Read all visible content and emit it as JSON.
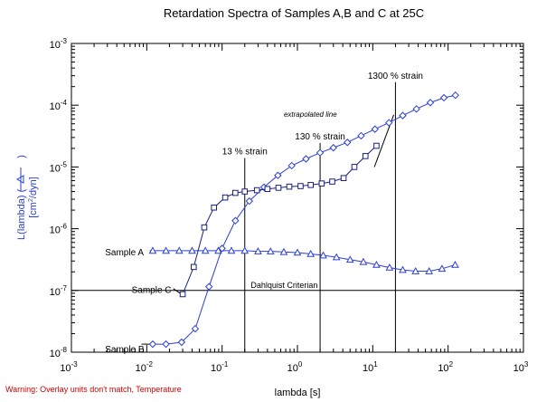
{
  "chart_data": {
    "type": "line",
    "title": "Retardation Spectra of Samples A,B and C at 25C",
    "xlabel": "lambda [s]",
    "ylabel": "L(lambda) (",
    "ylabel_suffix": ")",
    "ylabel_unit": "[cm",
    "ylabel_unit_sup": "2",
    "ylabel_unit_tail": "/dyn]",
    "x_scale": "log",
    "y_scale": "log",
    "xlim": [
      0.001,
      1000
    ],
    "ylim": [
      1e-08,
      0.001
    ],
    "x_ticks": [
      {
        "value": 0.001,
        "base": "10",
        "exp": "-3"
      },
      {
        "value": 0.01,
        "base": "10",
        "exp": "-2"
      },
      {
        "value": 0.1,
        "base": "10",
        "exp": "-1"
      },
      {
        "value": 1,
        "base": "10",
        "exp": "0"
      },
      {
        "value": 10,
        "base": "10",
        "exp": "1"
      },
      {
        "value": 100,
        "base": "10",
        "exp": "2"
      },
      {
        "value": 1000,
        "base": "10",
        "exp": "3"
      }
    ],
    "y_ticks": [
      {
        "value": 1e-08,
        "base": "10",
        "exp": "-8"
      },
      {
        "value": 1e-07,
        "base": "10",
        "exp": "-7"
      },
      {
        "value": 1e-06,
        "base": "10",
        "exp": "-6"
      },
      {
        "value": 1e-05,
        "base": "10",
        "exp": "-5"
      },
      {
        "value": 0.0001,
        "base": "10",
        "exp": "-4"
      },
      {
        "value": 0.001,
        "base": "10",
        "exp": "-3"
      }
    ],
    "grid": false,
    "series": [
      {
        "name": "Sample A",
        "marker": "triangle",
        "color": "#2b3fd8",
        "x": [
          0.012,
          0.018,
          0.027,
          0.04,
          0.06,
          0.089,
          0.133,
          0.2,
          0.3,
          0.44,
          0.66,
          1.0,
          1.5,
          2.2,
          3.3,
          5.0,
          7.5,
          11.2,
          16.7,
          25,
          37,
          56,
          83,
          124
        ],
        "y": [
          4.4e-07,
          4.4e-07,
          4.4e-07,
          4.4e-07,
          4.4e-07,
          4.4e-07,
          4.4e-07,
          4.4e-07,
          4.3e-07,
          4.3e-07,
          4.2e-07,
          4.1e-07,
          3.9e-07,
          3.7e-07,
          3.45e-07,
          3.15e-07,
          2.9e-07,
          2.6e-07,
          2.35e-07,
          2.15e-07,
          2.05e-07,
          2.05e-07,
          2.25e-07,
          2.6e-07
        ]
      },
      {
        "name": "Sample B",
        "marker": "diamond",
        "color": "#2b3fd8",
        "x": [
          0.012,
          0.018,
          0.029,
          0.044,
          0.067,
          0.1,
          0.15,
          0.23,
          0.36,
          0.55,
          0.84,
          1.3,
          2.0,
          3.0,
          4.6,
          7.0,
          10.7,
          16.4,
          25,
          38,
          58,
          88,
          125
        ],
        "y": [
          1.35e-08,
          1.35e-08,
          1.45e-08,
          2.4e-08,
          1.15e-07,
          4.8e-07,
          1.35e-06,
          2.8e-06,
          4.7e-06,
          7.3e-06,
          1.05e-05,
          1.35e-05,
          1.7e-05,
          2.05e-05,
          2.5e-05,
          3.2e-05,
          4.1e-05,
          5.2e-05,
          6.8e-05,
          8.7e-05,
          0.00011,
          0.000132,
          0.000145
        ]
      },
      {
        "name": "Sample C",
        "marker": "square",
        "color": "#1a1f80",
        "x": [
          0.03,
          0.042,
          0.058,
          0.078,
          0.11,
          0.15,
          0.2,
          0.29,
          0.4,
          0.56,
          0.78,
          1.1,
          1.5,
          2.1,
          2.9,
          4.1,
          5.7,
          8.0,
          11.2
        ],
        "y": [
          8.7e-08,
          2.4e-07,
          1.05e-06,
          2.2e-06,
          3.2e-06,
          3.8e-06,
          4e-06,
          4.2e-06,
          4.4e-06,
          4.6e-06,
          4.8e-06,
          4.9e-06,
          5.1e-06,
          5.4e-06,
          5.8e-06,
          6.6e-06,
          1e-05,
          1.5e-05,
          2.2e-05
        ]
      }
    ],
    "reference_lines": [
      {
        "label": "13 % strain",
        "x": 0.2
      },
      {
        "label": "130 % strain",
        "x": 2
      },
      {
        "label": "1300 % strain",
        "x": 20
      }
    ],
    "dahlquist": {
      "label": "Dahlquist Criterian",
      "y": 1e-07
    },
    "extrapolated_label": "extrapolated line",
    "extrapolated_line": {
      "x": [
        10.5,
        19
      ],
      "y": [
        1e-05,
        7e-05
      ]
    },
    "sample_labels": [
      {
        "text": "Sample A",
        "x": 0.0028,
        "y": 3.7e-07
      },
      {
        "text": "Sample C",
        "x": 0.0063,
        "y": 9.2e-08
      },
      {
        "text": "Sample B",
        "x": 0.0028,
        "y": 1e-08
      }
    ],
    "sample_pointers": [
      {
        "x": [
          0.011,
          0.0126
        ],
        "y": [
          4.4e-07,
          4.4e-07
        ]
      },
      {
        "x": [
          0.0225,
          0.029
        ],
        "y": [
          1.07e-07,
          8.7e-08
        ]
      },
      {
        "x": [
          0.0085,
          0.0124
        ],
        "y": [
          1.35e-08,
          1.35e-08
        ]
      }
    ],
    "colors": {
      "series": "#2b3fd8",
      "series_dark": "#1a1f80",
      "axis": "#000000",
      "warning": "#cc0000",
      "ylabel": "#2b3fd8"
    }
  },
  "warning": "Warning: Overlay units don't match, Temperature"
}
